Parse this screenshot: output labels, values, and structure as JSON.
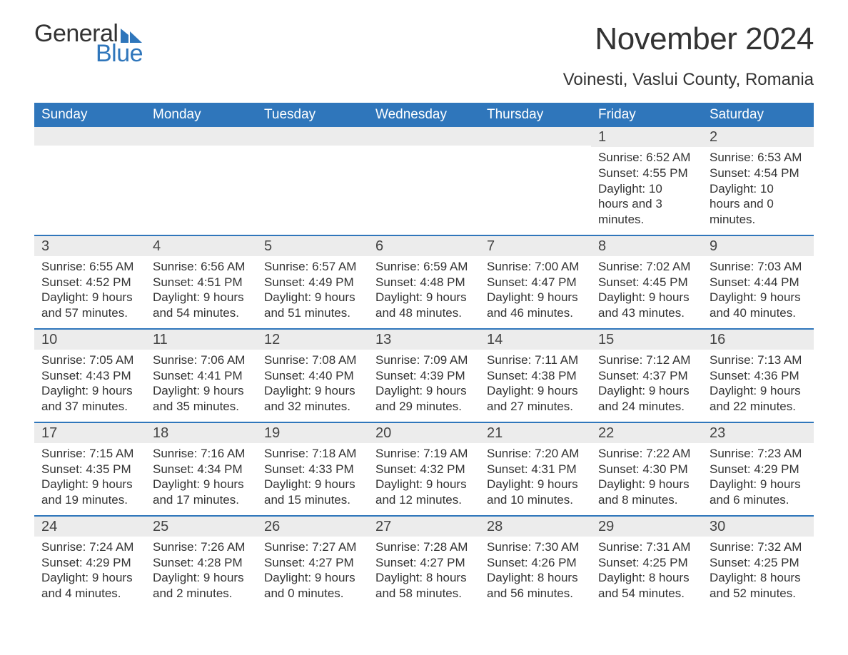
{
  "brand": {
    "word1": "General",
    "word2": "Blue",
    "accent_color": "#2f76bb"
  },
  "title": "November 2024",
  "subtitle": "Voinesti, Vaslui County, Romania",
  "colors": {
    "header_bg": "#2f76bb",
    "header_fg": "#ffffff",
    "row_divider": "#2f76bb",
    "daybar_bg": "#ececec",
    "page_bg": "#ffffff",
    "text": "#333333"
  },
  "calendar": {
    "type": "table",
    "columns": [
      "Sunday",
      "Monday",
      "Tuesday",
      "Wednesday",
      "Thursday",
      "Friday",
      "Saturday"
    ],
    "weeks": [
      [
        {
          "n": "",
          "sunrise": "",
          "sunset": "",
          "daylight": ""
        },
        {
          "n": "",
          "sunrise": "",
          "sunset": "",
          "daylight": ""
        },
        {
          "n": "",
          "sunrise": "",
          "sunset": "",
          "daylight": ""
        },
        {
          "n": "",
          "sunrise": "",
          "sunset": "",
          "daylight": ""
        },
        {
          "n": "",
          "sunrise": "",
          "sunset": "",
          "daylight": ""
        },
        {
          "n": "1",
          "sunrise": "Sunrise: 6:52 AM",
          "sunset": "Sunset: 4:55 PM",
          "daylight": "Daylight: 10 hours and 3 minutes."
        },
        {
          "n": "2",
          "sunrise": "Sunrise: 6:53 AM",
          "sunset": "Sunset: 4:54 PM",
          "daylight": "Daylight: 10 hours and 0 minutes."
        }
      ],
      [
        {
          "n": "3",
          "sunrise": "Sunrise: 6:55 AM",
          "sunset": "Sunset: 4:52 PM",
          "daylight": "Daylight: 9 hours and 57 minutes."
        },
        {
          "n": "4",
          "sunrise": "Sunrise: 6:56 AM",
          "sunset": "Sunset: 4:51 PM",
          "daylight": "Daylight: 9 hours and 54 minutes."
        },
        {
          "n": "5",
          "sunrise": "Sunrise: 6:57 AM",
          "sunset": "Sunset: 4:49 PM",
          "daylight": "Daylight: 9 hours and 51 minutes."
        },
        {
          "n": "6",
          "sunrise": "Sunrise: 6:59 AM",
          "sunset": "Sunset: 4:48 PM",
          "daylight": "Daylight: 9 hours and 48 minutes."
        },
        {
          "n": "7",
          "sunrise": "Sunrise: 7:00 AM",
          "sunset": "Sunset: 4:47 PM",
          "daylight": "Daylight: 9 hours and 46 minutes."
        },
        {
          "n": "8",
          "sunrise": "Sunrise: 7:02 AM",
          "sunset": "Sunset: 4:45 PM",
          "daylight": "Daylight: 9 hours and 43 minutes."
        },
        {
          "n": "9",
          "sunrise": "Sunrise: 7:03 AM",
          "sunset": "Sunset: 4:44 PM",
          "daylight": "Daylight: 9 hours and 40 minutes."
        }
      ],
      [
        {
          "n": "10",
          "sunrise": "Sunrise: 7:05 AM",
          "sunset": "Sunset: 4:43 PM",
          "daylight": "Daylight: 9 hours and 37 minutes."
        },
        {
          "n": "11",
          "sunrise": "Sunrise: 7:06 AM",
          "sunset": "Sunset: 4:41 PM",
          "daylight": "Daylight: 9 hours and 35 minutes."
        },
        {
          "n": "12",
          "sunrise": "Sunrise: 7:08 AM",
          "sunset": "Sunset: 4:40 PM",
          "daylight": "Daylight: 9 hours and 32 minutes."
        },
        {
          "n": "13",
          "sunrise": "Sunrise: 7:09 AM",
          "sunset": "Sunset: 4:39 PM",
          "daylight": "Daylight: 9 hours and 29 minutes."
        },
        {
          "n": "14",
          "sunrise": "Sunrise: 7:11 AM",
          "sunset": "Sunset: 4:38 PM",
          "daylight": "Daylight: 9 hours and 27 minutes."
        },
        {
          "n": "15",
          "sunrise": "Sunrise: 7:12 AM",
          "sunset": "Sunset: 4:37 PM",
          "daylight": "Daylight: 9 hours and 24 minutes."
        },
        {
          "n": "16",
          "sunrise": "Sunrise: 7:13 AM",
          "sunset": "Sunset: 4:36 PM",
          "daylight": "Daylight: 9 hours and 22 minutes."
        }
      ],
      [
        {
          "n": "17",
          "sunrise": "Sunrise: 7:15 AM",
          "sunset": "Sunset: 4:35 PM",
          "daylight": "Daylight: 9 hours and 19 minutes."
        },
        {
          "n": "18",
          "sunrise": "Sunrise: 7:16 AM",
          "sunset": "Sunset: 4:34 PM",
          "daylight": "Daylight: 9 hours and 17 minutes."
        },
        {
          "n": "19",
          "sunrise": "Sunrise: 7:18 AM",
          "sunset": "Sunset: 4:33 PM",
          "daylight": "Daylight: 9 hours and 15 minutes."
        },
        {
          "n": "20",
          "sunrise": "Sunrise: 7:19 AM",
          "sunset": "Sunset: 4:32 PM",
          "daylight": "Daylight: 9 hours and 12 minutes."
        },
        {
          "n": "21",
          "sunrise": "Sunrise: 7:20 AM",
          "sunset": "Sunset: 4:31 PM",
          "daylight": "Daylight: 9 hours and 10 minutes."
        },
        {
          "n": "22",
          "sunrise": "Sunrise: 7:22 AM",
          "sunset": "Sunset: 4:30 PM",
          "daylight": "Daylight: 9 hours and 8 minutes."
        },
        {
          "n": "23",
          "sunrise": "Sunrise: 7:23 AM",
          "sunset": "Sunset: 4:29 PM",
          "daylight": "Daylight: 9 hours and 6 minutes."
        }
      ],
      [
        {
          "n": "24",
          "sunrise": "Sunrise: 7:24 AM",
          "sunset": "Sunset: 4:29 PM",
          "daylight": "Daylight: 9 hours and 4 minutes."
        },
        {
          "n": "25",
          "sunrise": "Sunrise: 7:26 AM",
          "sunset": "Sunset: 4:28 PM",
          "daylight": "Daylight: 9 hours and 2 minutes."
        },
        {
          "n": "26",
          "sunrise": "Sunrise: 7:27 AM",
          "sunset": "Sunset: 4:27 PM",
          "daylight": "Daylight: 9 hours and 0 minutes."
        },
        {
          "n": "27",
          "sunrise": "Sunrise: 7:28 AM",
          "sunset": "Sunset: 4:27 PM",
          "daylight": "Daylight: 8 hours and 58 minutes."
        },
        {
          "n": "28",
          "sunrise": "Sunrise: 7:30 AM",
          "sunset": "Sunset: 4:26 PM",
          "daylight": "Daylight: 8 hours and 56 minutes."
        },
        {
          "n": "29",
          "sunrise": "Sunrise: 7:31 AM",
          "sunset": "Sunset: 4:25 PM",
          "daylight": "Daylight: 8 hours and 54 minutes."
        },
        {
          "n": "30",
          "sunrise": "Sunrise: 7:32 AM",
          "sunset": "Sunset: 4:25 PM",
          "daylight": "Daylight: 8 hours and 52 minutes."
        }
      ]
    ]
  }
}
